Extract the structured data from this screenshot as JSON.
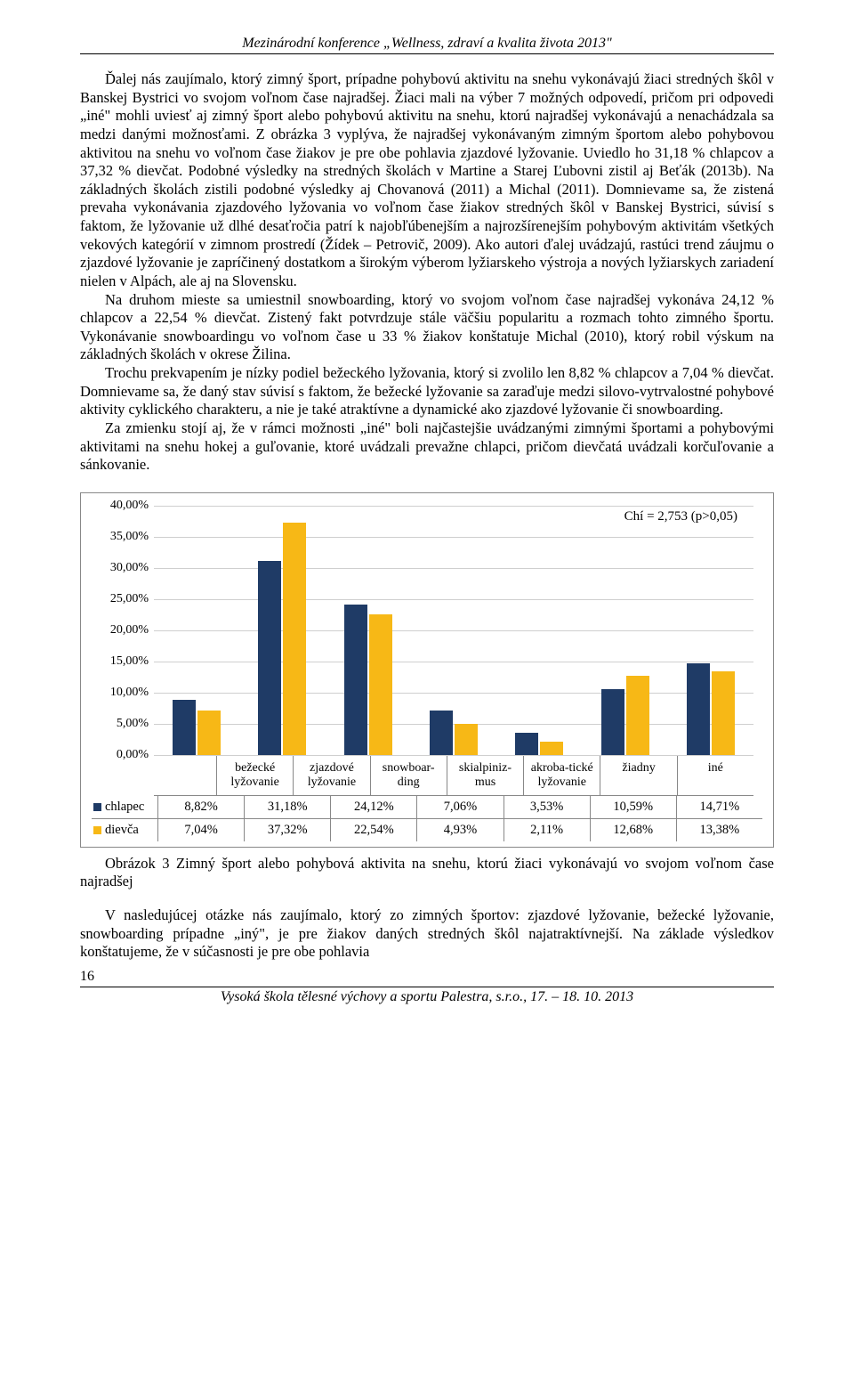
{
  "header": "Mezinárodní konference „Wellness, zdraví a kvalita života 2013\"",
  "paragraphs": {
    "p1": "Ďalej nás zaujímalo, ktorý zimný šport, prípadne pohybovú aktivitu na snehu vykonávajú žiaci stredných škôl v Banskej Bystrici vo svojom voľnom čase najradšej. Žiaci mali na výber 7 možných odpovedí, pričom pri odpovedi „iné\" mohli uviesť aj zimný šport alebo pohybovú aktivitu na snehu, ktorú najradšej vykonávajú a nenachádzala sa medzi danými možnosťami. Z obrázka 3 vyplýva, že najradšej vykonávaným zimným športom alebo pohybovou aktivitou na snehu vo voľnom čase žiakov je pre obe pohlavia zjazdové lyžovanie. Uviedlo ho 31,18 % chlapcov a 37,32 % dievčat. Podobné výsledky na stredných školách v Martine a Starej Ľubovni zistil aj Beťák (2013b). Na základných školách zistili podobné výsledky aj Chovanová (2011) a Michal (2011). Domnievame sa, že zistená prevaha vykonávania zjazdového lyžovania vo voľnom čase žiakov stredných škôl v Banskej Bystrici, súvisí s faktom, že lyžovanie už dlhé desaťročia patrí k najobľúbenejším a najrozšírenejším pohybovým aktivitám všetkých vekových kategórií v zimnom prostredí (Žídek – Petrovič, 2009). Ako autori ďalej uvádzajú, rastúci trend záujmu o zjazdové lyžovanie je zapríčinený dostatkom a širokým výberom lyžiarskeho výstroja a nových lyžiarskych zariadení nielen v Alpách, ale aj na Slovensku.",
    "p2": "Na druhom mieste sa umiestnil snowboarding, ktorý vo svojom voľnom čase najradšej vykonáva 24,12 % chlapcov a 22,54 % dievčat. Zistený fakt potvrdzuje stále väčšiu popularitu a rozmach tohto zimného športu. Vykonávanie snowboardingu vo voľnom čase u 33 % žiakov konštatuje Michal (2010), ktorý robil výskum na základných školách v okrese Žilina.",
    "p3": "Trochu prekvapením je nízky podiel bežeckého lyžovania, ktorý si zvolilo len 8,82 % chlapcov a 7,04 % dievčat. Domnievame sa, že daný stav súvisí s faktom, že bežecké lyžovanie sa zaraďuje medzi silovo-vytrvalostné pohybové aktivity cyklického charakteru, a nie je také atraktívne a dynamické ako zjazdové lyžovanie či snowboarding.",
    "p4": "Za zmienku stojí aj, že v rámci možnosti „iné\" boli najčastejšie uvádzanými zimnými športami a pohybovými aktivitami na snehu hokej a guľovanie, ktoré uvádzali prevažne chlapci, pričom dievčatá uvádzali korčuľovanie a sánkovanie."
  },
  "chart": {
    "chi_label": "Chí = 2,753 (p>0,05)",
    "ymax": 40,
    "ystep": 5,
    "yticks": [
      "40,00%",
      "35,00%",
      "30,00%",
      "25,00%",
      "20,00%",
      "15,00%",
      "10,00%",
      "5,00%",
      "0,00%"
    ],
    "categories": [
      {
        "label": "bežecké lyžovanie"
      },
      {
        "label": "zjazdové lyžovanie"
      },
      {
        "label": "snowboar-ding"
      },
      {
        "label": "skialpiniz-mus"
      },
      {
        "label": "akroba-tické lyžovanie"
      },
      {
        "label": "žiadny"
      },
      {
        "label": "iné"
      }
    ],
    "series": {
      "boy": {
        "label": "chlapec",
        "color": "#1f3b66",
        "values": [
          8.82,
          31.18,
          24.12,
          7.06,
          3.53,
          10.59,
          14.71
        ],
        "display": [
          "8,82%",
          "31,18%",
          "24,12%",
          "7,06%",
          "3,53%",
          "10,59%",
          "14,71%"
        ]
      },
      "girl": {
        "label": "dievča",
        "color": "#f7b816",
        "values": [
          7.04,
          37.32,
          22.54,
          4.93,
          2.11,
          12.68,
          13.38
        ],
        "display": [
          "7,04%",
          "37,32%",
          "22,54%",
          "4,93%",
          "2,11%",
          "12,68%",
          "13,38%"
        ]
      }
    }
  },
  "caption": "Obrázok 3 Zimný šport alebo pohybová aktivita na snehu, ktorú žiaci vykonávajú vo svojom voľnom čase najradšej",
  "after_caption": "V nasledujúcej otázke nás zaujímalo, ktorý zo zimných športov: zjazdové lyžovanie, bežecké lyžovanie, snowboarding prípadne „iný\", je pre žiakov daných stredných škôl najatraktívnejší. Na základe výsledkov konštatujeme, že v súčasnosti je pre obe pohlavia",
  "page_number": "16",
  "footer": "Vysoká škola tělesné výchovy a sportu Palestra, s.r.o., 17. – 18. 10. 2013"
}
